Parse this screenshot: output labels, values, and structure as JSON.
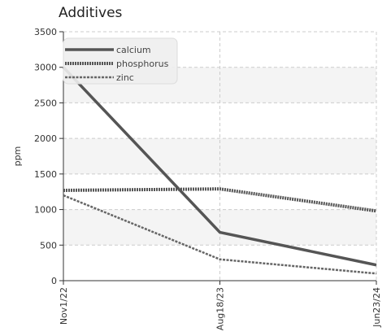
{
  "chart_data": {
    "type": "line",
    "title": "Additives",
    "xlabel": "",
    "ylabel": "ppm",
    "categories": [
      "Nov1/22",
      "Aug18/23",
      "Jun23/24"
    ],
    "ylim": [
      0,
      3500
    ],
    "yticks": [
      0,
      500,
      1000,
      1500,
      2000,
      2500,
      3000,
      3500
    ],
    "grid": true,
    "legend_position": "top-left",
    "series": [
      {
        "name": "calcium",
        "values": [
          3000,
          680,
          220
        ],
        "color": "#555555",
        "style": "solid"
      },
      {
        "name": "phosphorus",
        "values": [
          1270,
          1290,
          980
        ],
        "color": "#555555",
        "style": "dotted"
      },
      {
        "name": "zinc",
        "values": [
          1200,
          300,
          100
        ],
        "color": "#666666",
        "style": "dashed"
      }
    ]
  }
}
